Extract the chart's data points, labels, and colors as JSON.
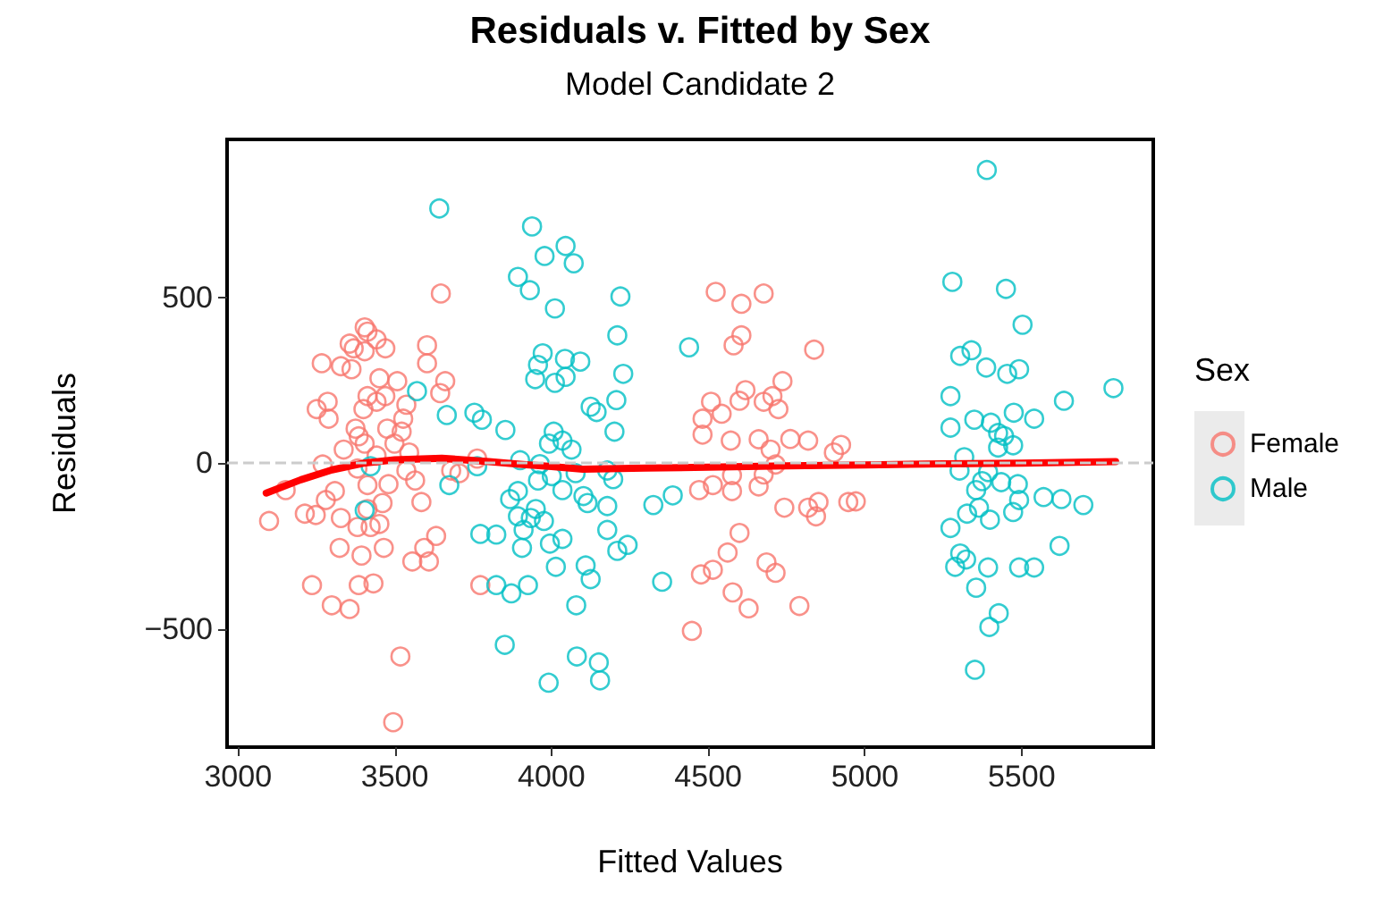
{
  "chart_data": {
    "type": "scatter",
    "title": "Residuals v. Fitted by Sex",
    "subtitle": "Model Candidate 2",
    "xlabel": "Fitted Values",
    "ylabel": "Residuals",
    "legend_title": "Sex",
    "legend": "right",
    "grid": false,
    "marker": "circle",
    "xlim": [
      2965,
      5920
    ],
    "xticks": [
      3000,
      3500,
      4000,
      4500,
      5000,
      5500
    ],
    "ylim": [
      -855,
      975
    ],
    "yticks": [
      {
        "value": -500,
        "label": "−500"
      },
      0,
      500
    ],
    "ref_lines": [
      {
        "axis": "y",
        "value": 0,
        "color": "#cccccc",
        "line_style": "dashed"
      }
    ],
    "series": [
      {
        "name": "Female",
        "color": "#f8766d",
        "x": [
          3404,
          3413,
          3356,
          3369,
          3404,
          3442,
          3470,
          3267,
          3328,
          3362,
          3603,
          3603,
          3647,
          3661,
          3645,
          3451,
          3508,
          3413,
          3470,
          3442,
          3537,
          3251,
          3286,
          3289,
          3400,
          3527,
          3375,
          3385,
          3476,
          3522,
          3404,
          3499,
          3337,
          3442,
          3546,
          3270,
          3537,
          3680,
          3381,
          3480,
          3565,
          3413,
          3152,
          3309,
          3585,
          3280,
          3213,
          3248,
          3328,
          3461,
          3413,
          3451,
          3381,
          3423,
          3099,
          3324,
          3394,
          3465,
          3632,
          3594,
          3556,
          3609,
          3236,
          3385,
          3432,
          3299,
          3356,
          3518,
          3495,
          3706,
          3763,
          3773,
          4524,
          4606,
          4677,
          4606,
          4581,
          4838,
          4737,
          4619,
          4509,
          4600,
          4677,
          4705,
          4724,
          4543,
          4482,
          4482,
          4572,
          4661,
          4762,
          4819,
          4924,
          4901,
          4699,
          4715,
          4576,
          4677,
          4471,
          4515,
          4576,
          4661,
          4743,
          4819,
          4852,
          4844,
          4947,
          4971,
          4600,
          4562,
          4477,
          4515,
          4686,
          4715,
          4578,
          4629,
          4791,
          4448
        ],
        "values": [
          409,
          396,
          360,
          346,
          337,
          373,
          346,
          301,
          292,
          283,
          355,
          301,
          511,
          247,
          211,
          256,
          247,
          202,
          202,
          185,
          176,
          163,
          185,
          134,
          163,
          134,
          104,
          81,
          104,
          95,
          59,
          59,
          41,
          23,
          32,
          -4,
          -22,
          -22,
          -16,
          -63,
          -52,
          -66,
          -81,
          -84,
          -117,
          -111,
          -152,
          -156,
          -165,
          -120,
          -138,
          -183,
          -192,
          -192,
          -174,
          -255,
          -278,
          -255,
          -219,
          -255,
          -296,
          -296,
          -367,
          -367,
          -362,
          -428,
          -439,
          -582,
          -780,
          -30,
          14,
          -367,
          516,
          480,
          511,
          385,
          355,
          342,
          247,
          220,
          185,
          188,
          185,
          202,
          163,
          149,
          134,
          86,
          68,
          72,
          73,
          68,
          55,
          32,
          41,
          -4,
          -36,
          -34,
          -81,
          -66,
          -84,
          -70,
          -134,
          -134,
          -117,
          -160,
          -117,
          -115,
          -210,
          -269,
          -335,
          -321,
          -299,
          -330,
          -389,
          -437,
          -430,
          -505
        ]
      },
      {
        "name": "Male",
        "color": "#00bfc4",
        "x": [
          3642,
          3571,
          3666,
          3423,
          3674,
          3404,
          3938,
          3978,
          4045,
          4071,
          3893,
          3931,
          4011,
          4220,
          4210,
          3972,
          3957,
          3948,
          4011,
          4043,
          4092,
          4045,
          4229,
          4207,
          4125,
          4144,
          4201,
          3754,
          3778,
          3853,
          4007,
          3992,
          4035,
          4064,
          3900,
          3963,
          3763,
          4001,
          3957,
          4077,
          4178,
          4197,
          4035,
          3893,
          3868,
          4102,
          4115,
          4178,
          3950,
          3893,
          3934,
          3976,
          3911,
          3773,
          3824,
          3995,
          4035,
          3906,
          4178,
          4210,
          4243,
          4014,
          4109,
          4125,
          3824,
          3872,
          3925,
          4353,
          4325,
          4387,
          4079,
          3851,
          4081,
          4151,
          3991,
          4155,
          4439,
          5389,
          5279,
          5450,
          5503,
          5304,
          5340,
          5387,
          5454,
          5492,
          5793,
          5635,
          5273,
          5273,
          5349,
          5402,
          5475,
          5540,
          5425,
          5444,
          5473,
          5425,
          5317,
          5302,
          5393,
          5374,
          5435,
          5488,
          5355,
          5570,
          5627,
          5697,
          5492,
          5364,
          5473,
          5326,
          5399,
          5273,
          5621,
          5304,
          5323,
          5288,
          5393,
          5492,
          5540,
          5355,
          5427,
          5397,
          5351
        ],
        "values": [
          767,
          217,
          145,
          -9,
          -66,
          -142,
          713,
          624,
          654,
          602,
          561,
          521,
          466,
          502,
          385,
          331,
          296,
          253,
          242,
          314,
          306,
          260,
          269,
          190,
          170,
          154,
          95,
          152,
          131,
          100,
          95,
          59,
          68,
          41,
          9,
          -3,
          -9,
          -39,
          -52,
          -30,
          -22,
          -48,
          -81,
          -84,
          -108,
          -99,
          -120,
          -129,
          -138,
          -160,
          -165,
          -174,
          -201,
          -213,
          -215,
          -242,
          -228,
          -255,
          -201,
          -264,
          -246,
          -312,
          -308,
          -349,
          -367,
          -392,
          -367,
          -357,
          -126,
          -97,
          -428,
          -547,
          -582,
          -600,
          -661,
          -654,
          349,
          883,
          546,
          525,
          417,
          323,
          340,
          288,
          269,
          283,
          226,
          188,
          202,
          107,
          131,
          122,
          152,
          134,
          91,
          82,
          54,
          47,
          18,
          -22,
          -27,
          -54,
          -57,
          -63,
          -81,
          -102,
          -108,
          -126,
          -111,
          -134,
          -147,
          -152,
          -170,
          -195,
          -249,
          -272,
          -290,
          -312,
          -314,
          -314,
          -314,
          -375,
          -452,
          -493,
          -622
        ]
      },
      {
        "type": "line",
        "color": "#ff0000",
        "marker": "none",
        "line_style": "solid",
        "x": [
          3090,
          3200,
          3300,
          3400,
          3500,
          3650,
          3800,
          3900,
          4000,
          4100,
          4300,
          4500,
          4750,
          5000,
          5250,
          5500,
          5800
        ],
        "values": [
          -90,
          -50,
          -20,
          0,
          10,
          15,
          5,
          -3,
          -10,
          -18,
          -15,
          -12,
          -8,
          -5,
          -2,
          0,
          5
        ]
      }
    ]
  }
}
